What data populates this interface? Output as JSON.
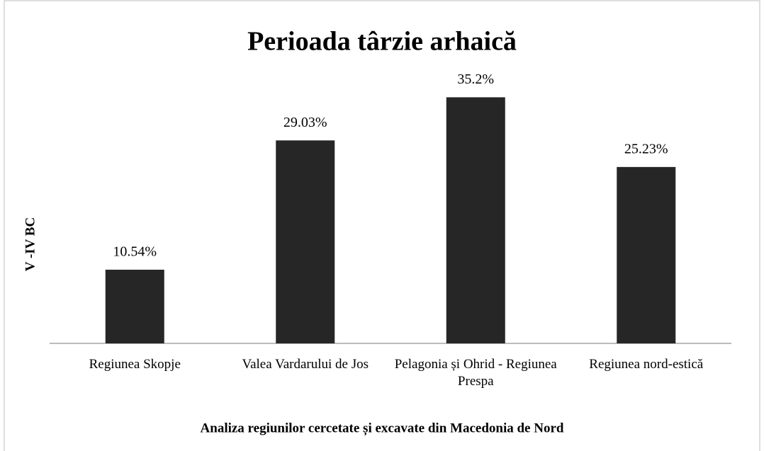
{
  "chart_data": {
    "type": "bar",
    "title": "Perioada târzie arhaică",
    "y_label": "V -IV BC",
    "x_label": "Analiza regiunilor cercetate și excavate din Macedonia de Nord",
    "categories": [
      "Regiunea Skopje",
      "Valea Vardarului de Jos",
      "Pelagonia și Ohrid - Regiunea Prespa",
      "Regiunea nord-estică"
    ],
    "values": [
      10.54,
      29.03,
      35.2,
      25.23
    ],
    "value_labels": [
      "10.54%",
      "29.03%",
      "35.2%",
      "25.23%"
    ],
    "color": "#262626",
    "ylim": [
      0,
      40
    ]
  }
}
